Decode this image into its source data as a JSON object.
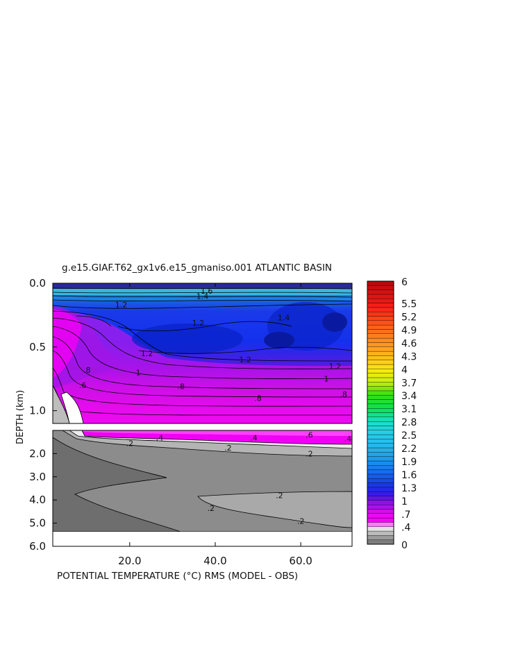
{
  "chart_data": {
    "type": "heatmap",
    "title": "g.e15.GIAF.T62_gx1v6.e15_gmaniso.001 ATLANTIC BASIN",
    "xlabel": "POTENTIAL TEMPERATURE (°C) RMS (MODEL - OBS)",
    "ylabel": "DEPTH (km)",
    "xlim": [
      2,
      72
    ],
    "x_ticks": [
      "20.0",
      "40.0",
      "60.0"
    ],
    "x_tick_values": [
      20,
      40,
      60
    ],
    "upper_panel": {
      "ylim": [
        0.0,
        1.1
      ],
      "y_ticks": [
        "0.0",
        "0.5",
        "1.0"
      ],
      "y_tick_values": [
        0.0,
        0.5,
        1.0
      ]
    },
    "lower_panel": {
      "ylim": [
        1.0,
        6.0
      ],
      "y_ticks": [
        "2.0",
        "3.0",
        "4.0",
        "5.0",
        "6.0"
      ],
      "y_tick_values": [
        2.0,
        3.0,
        4.0,
        5.0,
        6.0
      ]
    },
    "colorbar": {
      "min": 0,
      "max": 6,
      "step": 0.1,
      "tick_labels": [
        "6",
        "5.5",
        "5.2",
        "4.9",
        "4.6",
        "4.3",
        "4",
        "3.7",
        "3.4",
        "3.1",
        "2.8",
        "2.5",
        "2.2",
        "1.9",
        "1.6",
        "1.3",
        "1",
        ".7",
        ".4",
        "0"
      ],
      "tick_values": [
        6,
        5.5,
        5.2,
        4.9,
        4.6,
        4.3,
        4,
        3.7,
        3.4,
        3.1,
        2.8,
        2.5,
        2.2,
        1.9,
        1.6,
        1.3,
        1,
        0.7,
        0.4,
        0
      ]
    },
    "contour_labels": [
      {
        "text": "1.2",
        "x": 18,
        "depth": 0.17
      },
      {
        "text": "1.4",
        "x": 37,
        "depth": 0.1
      },
      {
        "text": "1.6",
        "x": 38,
        "depth": 0.06
      },
      {
        "text": "1.2",
        "x": 36,
        "depth": 0.31
      },
      {
        "text": "1.4",
        "x": 56,
        "depth": 0.27
      },
      {
        "text": "1.2",
        "x": 24,
        "depth": 0.55
      },
      {
        "text": "1.2",
        "x": 47,
        "depth": 0.6
      },
      {
        "text": "1.2",
        "x": 68,
        "depth": 0.65
      },
      {
        "text": "1",
        "x": 22,
        "depth": 0.7
      },
      {
        "text": "1",
        "x": 66,
        "depth": 0.75
      },
      {
        "text": ".8",
        "x": 10,
        "depth": 0.68
      },
      {
        "text": ".6",
        "x": 9,
        "depth": 0.8
      },
      {
        "text": ".8",
        "x": 32,
        "depth": 0.81
      },
      {
        "text": ".8",
        "x": 50,
        "depth": 0.9
      },
      {
        "text": ".8",
        "x": 70,
        "depth": 0.87
      },
      {
        "text": ".6",
        "x": 62,
        "depth": 1.2
      },
      {
        "text": ".4",
        "x": 27,
        "depth": 1.31
      },
      {
        "text": ".4",
        "x": 49,
        "depth": 1.31
      },
      {
        "text": ".4",
        "x": 71,
        "depth": 1.36
      },
      {
        "text": ".2",
        "x": 20,
        "depth": 1.55
      },
      {
        "text": ".2",
        "x": 43,
        "depth": 1.75
      },
      {
        "text": ".2",
        "x": 62,
        "depth": 2.0
      },
      {
        "text": ".2",
        "x": 55,
        "depth": 3.8
      },
      {
        "text": ".2",
        "x": 39,
        "depth": 4.35
      },
      {
        "text": ".2",
        "x": 60,
        "depth": 4.9
      }
    ]
  }
}
